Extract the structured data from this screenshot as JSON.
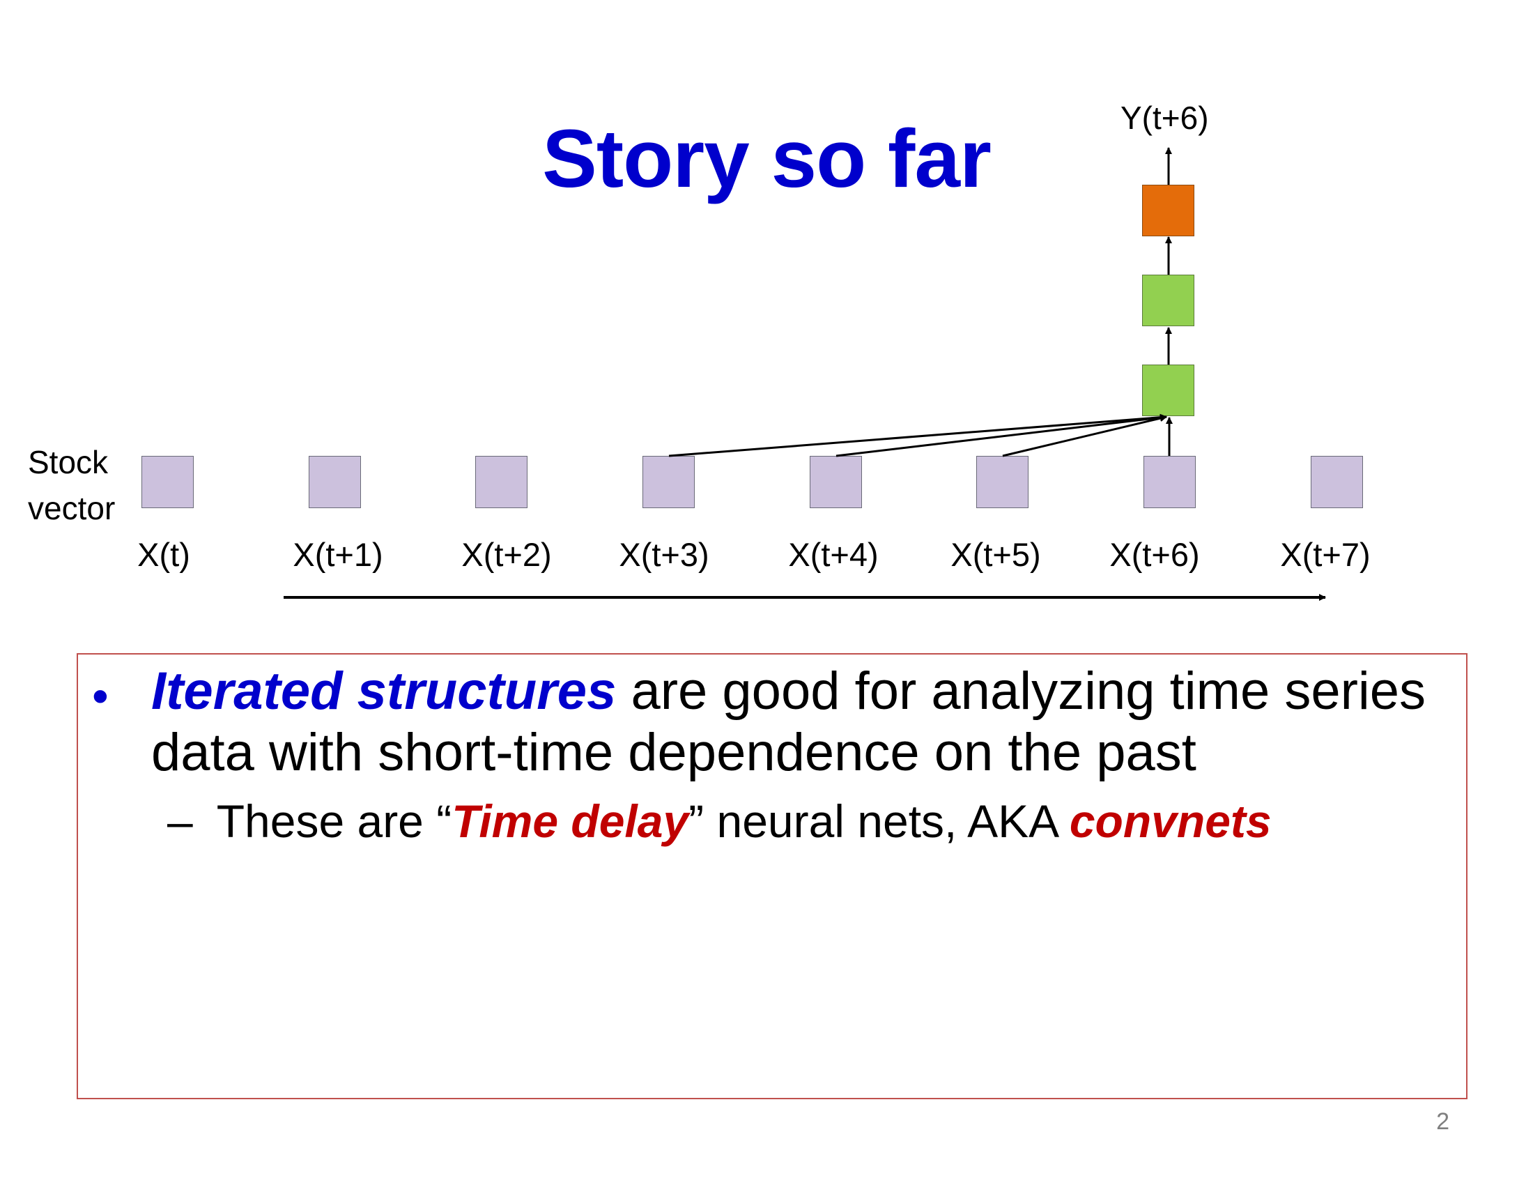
{
  "slide": {
    "title": "Story so far",
    "page_number": "2"
  },
  "diagram": {
    "output_label": "Y(t+6)",
    "side_label_line1": "Stock",
    "side_label_line2": "vector",
    "x_labels": [
      "X(t)",
      "X(t+1)",
      "X(t+2)",
      "X(t+3)",
      "X(t+4)",
      "X(t+5)",
      "X(t+6)",
      "X(t+7)"
    ],
    "colors": {
      "input": "#ccc1dd",
      "hidden": "#92d050",
      "output": "#e46c0a",
      "title": "#0000cc",
      "emphasis_blue": "#0000cc",
      "emphasis_red": "#c00000",
      "frame": "#c0504d"
    }
  },
  "bullets": {
    "b1_emph": "Iterated structures",
    "b1_rest": " are good for analyzing time series",
    "b1_line2": "data with short-time dependence on the past",
    "sub_dash": "–",
    "sub_pre": "These are “",
    "sub_emph1": "Time delay",
    "sub_mid": "” neural nets, AKA ",
    "sub_emph2": "convnets"
  }
}
